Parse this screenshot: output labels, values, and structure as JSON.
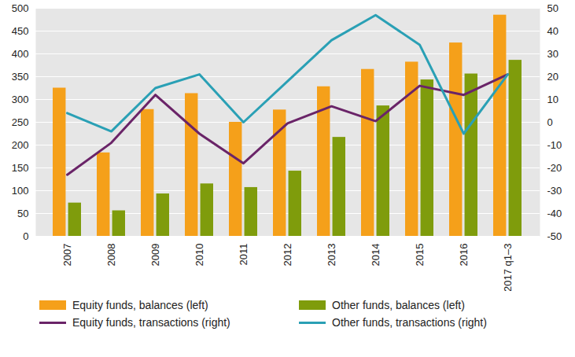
{
  "chart_data": {
    "type": "bar",
    "categories": [
      "2007",
      "2008",
      "2009",
      "2010",
      "2011",
      "2012",
      "2013",
      "2014",
      "2015",
      "2016",
      "2017 q1–3"
    ],
    "series": [
      {
        "name": "Equity funds, balances (left)",
        "type": "bar",
        "color": "#f5a01a",
        "values": [
          325,
          183,
          278,
          313,
          250,
          277,
          328,
          366,
          382,
          424,
          485
        ]
      },
      {
        "name": "Other funds, balances (left)",
        "type": "bar",
        "color": "#7f9c0c",
        "values": [
          73,
          56,
          93,
          115,
          107,
          143,
          217,
          286,
          343,
          356,
          386
        ]
      },
      {
        "name": "Equity funds, transactions (right)",
        "type": "line",
        "axis": "y2",
        "color": "#6a2468",
        "values": [
          -23,
          -9,
          12,
          -5,
          -18,
          -0.5,
          7,
          0.5,
          16,
          12,
          21
        ]
      },
      {
        "name": "Other funds, transactions (right)",
        "type": "line",
        "axis": "y2",
        "color": "#2aa0b5",
        "values": [
          4,
          -4,
          15,
          21,
          0,
          18,
          36,
          47,
          34,
          -5,
          21
        ]
      }
    ],
    "ylim": [
      0,
      500
    ],
    "yticks": [
      0,
      50,
      100,
      150,
      200,
      250,
      300,
      350,
      400,
      450,
      500
    ],
    "y2lim": [
      -50,
      50
    ],
    "y2ticks": [
      -50,
      -40,
      -30,
      -20,
      -10,
      0,
      10,
      20,
      30,
      40,
      50
    ],
    "grid": true,
    "legend": "bottom"
  }
}
